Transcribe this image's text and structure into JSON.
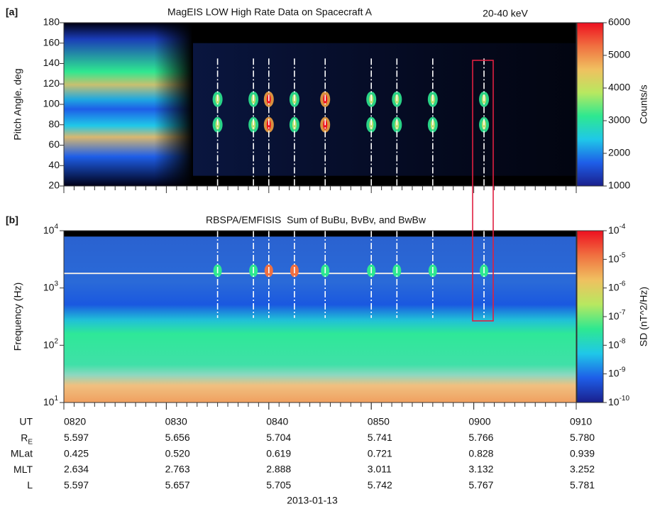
{
  "chart_data": [
    {
      "type": "heatmap",
      "panel_label": "[a]",
      "title": "MagEIS LOW High Rate Data on Spacecraft A",
      "annotation": "20-40 keV",
      "ylabel": "Pitch Angle, deg",
      "ylim": [
        20,
        180
      ],
      "yticks": [
        20,
        40,
        60,
        80,
        100,
        120,
        140,
        160,
        180
      ],
      "xlim": [
        500,
        550
      ],
      "log_y": false,
      "events": [
        515,
        518.5,
        520,
        522.5,
        525.5,
        530,
        532.5,
        536,
        541
      ],
      "colorbar": {
        "label": "Counts/s",
        "lim": [
          1000,
          6000
        ],
        "ticks": [
          1000,
          2000,
          3000,
          4000,
          5000,
          6000
        ],
        "log": false,
        "colors": [
          "#1a1f8c",
          "#1e5ee8",
          "#1fc8e8",
          "#2ee890",
          "#b8e860",
          "#f0c060",
          "#f07040",
          "#ee1020"
        ]
      }
    },
    {
      "type": "heatmap",
      "panel_label": "[b]",
      "title": "RBSPA/EMFISIS  Sum of BuBu, BvBv, and BwBw",
      "ylabel": "Frequency (Hz)",
      "ylim": [
        10,
        10000
      ],
      "log_y": true,
      "yticks": [
        {
          "value": 10,
          "label": "10",
          "sup": "1"
        },
        {
          "value": 100,
          "label": "10",
          "sup": "2"
        },
        {
          "value": 1000,
          "label": "10",
          "sup": "3"
        },
        {
          "value": 10000,
          "label": "10",
          "sup": "4"
        }
      ],
      "xlim": [
        500,
        550
      ],
      "xticks": [
        {
          "value": 500,
          "label": "0820"
        },
        {
          "value": 510,
          "label": "0830"
        },
        {
          "value": 520,
          "label": "0840"
        },
        {
          "value": 530,
          "label": "0850"
        },
        {
          "value": 540,
          "label": "0900"
        },
        {
          "value": 550,
          "label": "0910"
        }
      ],
      "xlabel": "2013-01-13",
      "events": [
        515,
        518.5,
        520,
        522.5,
        525.5,
        530,
        532.5,
        536,
        541
      ],
      "colorbar": {
        "label": "SD (nT^2/Hz)",
        "lim": [
          1e-10,
          0.0001
        ],
        "log": true,
        "ticks": [
          {
            "value": 1e-10,
            "label": "10",
            "sup": "-10"
          },
          {
            "value": 1e-09,
            "label": "10",
            "sup": "-9"
          },
          {
            "value": 1e-08,
            "label": "10",
            "sup": "-8"
          },
          {
            "value": 1e-07,
            "label": "10",
            "sup": "-7"
          },
          {
            "value": 1e-06,
            "label": "10",
            "sup": "-6"
          },
          {
            "value": 1e-05,
            "label": "10",
            "sup": "-5"
          },
          {
            "value": 0.0001,
            "label": "10",
            "sup": "-4"
          }
        ],
        "colors": [
          "#1a1f8c",
          "#1e5ee8",
          "#1fc8e8",
          "#2ee890",
          "#b8e860",
          "#f0c060",
          "#f07040",
          "#ee1020"
        ]
      }
    }
  ],
  "ephemeris": {
    "header": "UT",
    "rows": [
      {
        "label": "R",
        "sub": "E",
        "values": [
          "5.597",
          "5.656",
          "5.704",
          "5.741",
          "5.766",
          "5.780"
        ]
      },
      {
        "label": "MLat",
        "values": [
          "0.425",
          "0.520",
          "0.619",
          "0.721",
          "0.828",
          "0.939"
        ]
      },
      {
        "label": "MLT",
        "values": [
          "2.634",
          "2.763",
          "2.888",
          "3.011",
          "3.132",
          "3.252"
        ]
      },
      {
        "label": "L",
        "values": [
          "5.597",
          "5.657",
          "5.705",
          "5.742",
          "5.767",
          "5.781"
        ]
      }
    ]
  }
}
